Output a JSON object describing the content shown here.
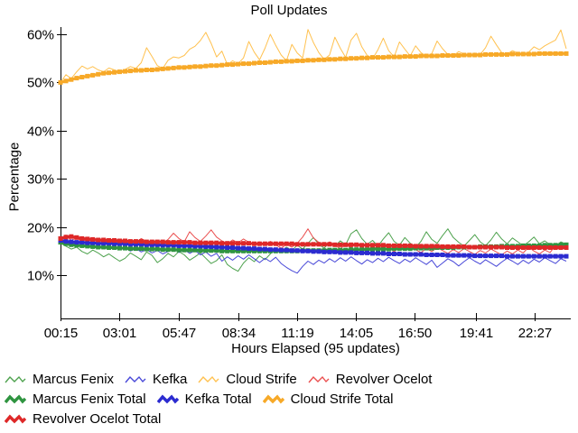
{
  "title": "Poll Updates",
  "axes": {
    "ylabel": "Percentage",
    "xlabel": "Hours Elapsed (95 updates)",
    "y_ticks": [
      {
        "value": 10,
        "label": "10%"
      },
      {
        "value": 20,
        "label": "20%"
      },
      {
        "value": 30,
        "label": "30%"
      },
      {
        "value": 40,
        "label": "40%"
      },
      {
        "value": 50,
        "label": "50%"
      },
      {
        "value": 60,
        "label": "60%"
      }
    ],
    "x_ticks": [
      {
        "minutes": 15,
        "label": "00:15"
      },
      {
        "minutes": 181,
        "label": "03:01"
      },
      {
        "minutes": 347,
        "label": "05:47"
      },
      {
        "minutes": 514,
        "label": "08:34"
      },
      {
        "minutes": 679,
        "label": "11:19"
      },
      {
        "minutes": 845,
        "label": "14:05"
      },
      {
        "minutes": 1010,
        "label": "16:50"
      },
      {
        "minutes": 1181,
        "label": "19:41"
      },
      {
        "minutes": 1347,
        "label": "22:27"
      }
    ]
  },
  "chart_data": {
    "type": "line",
    "title": "Poll Updates",
    "xlabel": "Hours Elapsed (95 updates)",
    "ylabel": "Percentage",
    "updates": 95,
    "x_minutes_range": [
      15,
      1435
    ],
    "ylim": [
      1,
      60
    ],
    "grid": false,
    "legend_position": "bottom",
    "series": [
      {
        "name": "Marcus Fenix",
        "color": "#4ea24e",
        "style": "thin",
        "values": [
          16.6,
          16.0,
          15.4,
          15.8,
          14.9,
          14.4,
          15.2,
          14.6,
          13.8,
          14.4,
          13.6,
          12.9,
          13.5,
          14.6,
          13.9,
          13.2,
          14.8,
          14.1,
          12.6,
          13.4,
          14.5,
          13.8,
          14.9,
          14.2,
          13.1,
          13.8,
          14.6,
          13.5,
          12.4,
          13.0,
          14.2,
          12.2,
          11.4,
          10.8,
          12.5,
          13.6,
          12.8,
          14.0,
          13.2,
          14.4,
          15.6,
          14.8,
          15.8,
          15.1,
          16.2,
          15.4,
          16.6,
          17.8,
          16.4,
          15.6,
          16.8,
          16.0,
          17.1,
          16.3,
          18.6,
          19.4,
          17.6,
          16.4,
          17.2,
          16.0,
          17.5,
          18.8,
          17.0,
          16.2,
          17.8,
          16.6,
          15.8,
          17.0,
          19.0,
          17.4,
          16.6,
          18.2,
          19.6,
          17.8,
          16.8,
          16.0,
          17.2,
          18.4,
          16.9,
          16.1,
          17.3,
          18.9,
          17.5,
          16.5,
          17.7,
          16.9,
          16.1,
          16.9,
          17.9,
          16.5,
          17.1,
          16.3,
          15.7,
          16.9,
          16.4
        ]
      },
      {
        "name": "Kefka",
        "color": "#4848d8",
        "style": "thin",
        "values": [
          17.0,
          16.4,
          16.8,
          16.1,
          16.5,
          15.9,
          16.3,
          15.7,
          16.1,
          15.5,
          15.9,
          15.3,
          15.7,
          15.0,
          15.5,
          14.8,
          15.3,
          14.6,
          15.1,
          14.4,
          14.9,
          15.6,
          14.7,
          15.3,
          14.5,
          15.1,
          14.2,
          14.8,
          13.9,
          14.5,
          12.9,
          13.8,
          13.1,
          14.0,
          13.3,
          14.2,
          13.4,
          12.6,
          13.5,
          12.8,
          13.7,
          12.4,
          11.6,
          10.9,
          10.4,
          11.8,
          12.9,
          12.2,
          13.1,
          12.5,
          13.4,
          12.7,
          13.6,
          12.9,
          13.8,
          13.0,
          12.3,
          13.2,
          12.6,
          13.5,
          12.8,
          13.7,
          13.0,
          12.4,
          13.3,
          12.7,
          13.6,
          12.9,
          12.2,
          13.1,
          11.6,
          12.5,
          13.4,
          12.8,
          11.9,
          12.8,
          13.6,
          12.9,
          12.3,
          13.2,
          12.5,
          11.8,
          12.7,
          13.5,
          12.9,
          12.2,
          13.1,
          12.4,
          13.3,
          12.7,
          13.6,
          13.0,
          12.4,
          13.4,
          12.9
        ]
      },
      {
        "name": "Cloud Strife",
        "color": "#ffc14f",
        "style": "thin",
        "values": [
          50.0,
          51.6,
          50.8,
          52.2,
          53.4,
          52.8,
          53.3,
          52.6,
          52.2,
          53.0,
          52.6,
          52.3,
          52.7,
          53.3,
          52.9,
          54.1,
          57.2,
          55.4,
          53.5,
          52.9,
          54.6,
          55.3,
          55.1,
          55.6,
          56.9,
          57.5,
          58.7,
          60.4,
          58.1,
          55.3,
          56.5,
          53.7,
          54.5,
          53.9,
          55.1,
          58.5,
          56.3,
          54.7,
          57.1,
          60.0,
          57.7,
          55.7,
          54.5,
          57.9,
          56.1,
          55.1,
          61.0,
          58.3,
          56.2,
          54.8,
          55.7,
          59.4,
          57.1,
          55.2,
          58.8,
          60.2,
          57.4,
          55.6,
          54.9,
          56.8,
          59.2,
          56.6,
          55.3,
          58.4,
          56.9,
          55.5,
          57.6,
          56.2,
          55.4,
          56.0,
          58.6,
          57.0,
          55.8,
          55.5,
          56.4,
          55.9,
          55.6,
          56.1,
          55.8,
          57.2,
          59.6,
          57.8,
          56.2,
          55.9,
          56.6,
          56.1,
          55.8,
          56.3,
          57.4,
          56.8,
          57.6,
          58.2,
          58.8,
          60.9,
          57.0
        ]
      },
      {
        "name": "Revolver Ocelot",
        "color": "#ea4f4f",
        "style": "thin",
        "values": [
          17.6,
          18.3,
          17.2,
          17.8,
          16.9,
          17.5,
          16.8,
          17.4,
          16.7,
          17.2,
          16.6,
          17.1,
          16.5,
          17.3,
          16.8,
          17.6,
          17.0,
          16.4,
          17.1,
          16.6,
          17.4,
          18.7,
          17.6,
          16.9,
          19.0,
          17.8,
          17.0,
          18.1,
          19.4,
          17.9,
          17.1,
          16.5,
          17.3,
          16.7,
          17.5,
          16.8,
          16.1,
          16.9,
          16.2,
          17.0,
          16.3,
          15.6,
          16.4,
          15.8,
          16.6,
          17.9,
          19.6,
          17.7,
          16.8,
          16.1,
          16.9,
          16.2,
          15.5,
          16.3,
          15.7,
          16.5,
          15.9,
          15.2,
          16.0,
          15.4,
          16.2,
          15.6,
          14.9,
          15.7,
          15.1,
          15.9,
          15.3,
          14.7,
          15.5,
          14.9,
          15.7,
          15.1,
          14.5,
          15.3,
          14.7,
          15.5,
          14.9,
          14.3,
          15.1,
          14.6,
          15.4,
          14.8,
          14.2,
          15.0,
          14.4,
          15.2,
          14.6,
          15.8,
          15.0,
          14.4,
          15.2,
          14.7,
          16.2,
          15.4,
          16.6
        ]
      },
      {
        "name": "Marcus Fenix Total",
        "color": "#2f9440",
        "style": "thick",
        "values": [
          16.8,
          16.5,
          16.3,
          16.2,
          16.1,
          16.0,
          15.9,
          15.8,
          15.8,
          15.7,
          15.7,
          15.6,
          15.6,
          15.5,
          15.5,
          15.5,
          15.4,
          15.4,
          15.4,
          15.3,
          15.3,
          15.3,
          15.2,
          15.2,
          15.2,
          15.2,
          15.1,
          15.1,
          15.1,
          15.1,
          15.0,
          15.0,
          15.0,
          15.0,
          15.0,
          15.0,
          15.0,
          15.0,
          15.0,
          15.0,
          15.0,
          15.0,
          15.0,
          15.0,
          15.0,
          15.1,
          15.1,
          15.1,
          15.1,
          15.1,
          15.2,
          15.2,
          15.2,
          15.2,
          15.3,
          15.3,
          15.3,
          15.3,
          15.4,
          15.4,
          15.4,
          15.4,
          15.5,
          15.5,
          15.5,
          15.5,
          15.6,
          15.6,
          15.6,
          15.6,
          15.7,
          15.7,
          15.7,
          15.7,
          15.8,
          15.8,
          15.8,
          15.8,
          15.9,
          15.9,
          15.9,
          15.9,
          16.0,
          16.0,
          16.0,
          16.0,
          16.1,
          16.1,
          16.1,
          16.1,
          16.2,
          16.2,
          16.2,
          16.3,
          16.3
        ]
      },
      {
        "name": "Kefka Total",
        "color": "#2b2bd0",
        "style": "thick",
        "values": [
          17.2,
          17.0,
          16.9,
          16.8,
          16.8,
          16.7,
          16.7,
          16.6,
          16.6,
          16.6,
          16.5,
          16.5,
          16.5,
          16.4,
          16.4,
          16.4,
          16.3,
          16.3,
          16.3,
          16.2,
          16.2,
          16.2,
          16.1,
          16.1,
          16.1,
          16.0,
          16.0,
          15.9,
          15.9,
          15.8,
          15.8,
          15.7,
          15.7,
          15.6,
          15.6,
          15.5,
          15.5,
          15.4,
          15.4,
          15.3,
          15.3,
          15.2,
          15.2,
          15.1,
          15.1,
          15.0,
          15.0,
          14.9,
          14.9,
          14.8,
          14.8,
          14.8,
          14.7,
          14.7,
          14.7,
          14.6,
          14.6,
          14.6,
          14.5,
          14.5,
          14.5,
          14.4,
          14.4,
          14.4,
          14.3,
          14.3,
          14.3,
          14.3,
          14.2,
          14.2,
          14.2,
          14.2,
          14.1,
          14.1,
          14.1,
          14.1,
          14.1,
          14.0,
          14.0,
          14.0,
          14.0,
          14.0,
          14.0,
          13.9,
          13.9,
          13.9,
          13.9,
          13.9,
          13.9,
          13.9,
          13.9,
          13.9,
          13.9,
          13.9,
          13.9
        ]
      },
      {
        "name": "Cloud Strife Total",
        "color": "#f7a928",
        "style": "thick",
        "values": [
          50.0,
          50.3,
          50.6,
          50.9,
          51.1,
          51.3,
          51.5,
          51.7,
          51.9,
          52.0,
          52.1,
          52.2,
          52.3,
          52.4,
          52.5,
          52.5,
          52.6,
          52.6,
          52.7,
          52.8,
          52.9,
          53.0,
          53.1,
          53.1,
          53.2,
          53.3,
          53.3,
          53.4,
          53.5,
          53.5,
          53.6,
          53.7,
          53.7,
          53.8,
          53.9,
          53.9,
          54.0,
          54.1,
          54.1,
          54.2,
          54.3,
          54.3,
          54.4,
          54.4,
          54.5,
          54.5,
          54.6,
          54.6,
          54.7,
          54.7,
          54.8,
          54.8,
          54.9,
          54.9,
          55.0,
          55.0,
          55.1,
          55.1,
          55.2,
          55.2,
          55.2,
          55.3,
          55.3,
          55.3,
          55.4,
          55.4,
          55.4,
          55.5,
          55.5,
          55.5,
          55.5,
          55.6,
          55.6,
          55.6,
          55.6,
          55.7,
          55.7,
          55.7,
          55.7,
          55.8,
          55.8,
          55.8,
          55.8,
          55.8,
          55.9,
          55.9,
          55.9,
          55.9,
          55.9,
          56.0,
          56.0,
          56.0,
          56.0,
          56.0,
          56.0
        ]
      },
      {
        "name": "Revolver Ocelot Total",
        "color": "#de2828",
        "style": "thick",
        "values": [
          17.6,
          17.9,
          18.0,
          17.8,
          17.6,
          17.5,
          17.4,
          17.3,
          17.3,
          17.2,
          17.2,
          17.1,
          17.1,
          17.0,
          17.0,
          17.0,
          16.9,
          16.9,
          16.9,
          16.9,
          16.8,
          16.8,
          16.8,
          16.8,
          16.8,
          16.7,
          16.7,
          16.7,
          16.7,
          16.7,
          16.6,
          16.6,
          16.6,
          16.6,
          16.6,
          16.6,
          16.5,
          16.5,
          16.5,
          16.5,
          16.5,
          16.5,
          16.5,
          16.5,
          16.4,
          16.4,
          16.4,
          16.4,
          16.4,
          16.4,
          16.4,
          16.3,
          16.3,
          16.3,
          16.3,
          16.3,
          16.2,
          16.2,
          16.2,
          16.2,
          16.2,
          16.1,
          16.1,
          16.1,
          16.1,
          16.1,
          16.0,
          16.0,
          16.0,
          16.0,
          16.0,
          15.9,
          15.9,
          15.9,
          15.9,
          15.9,
          15.8,
          15.8,
          15.8,
          15.8,
          15.8,
          15.8,
          15.8,
          15.7,
          15.7,
          15.7,
          15.7,
          15.7,
          15.7,
          15.7,
          15.7,
          15.7,
          15.7,
          15.7,
          15.7
        ]
      }
    ]
  }
}
